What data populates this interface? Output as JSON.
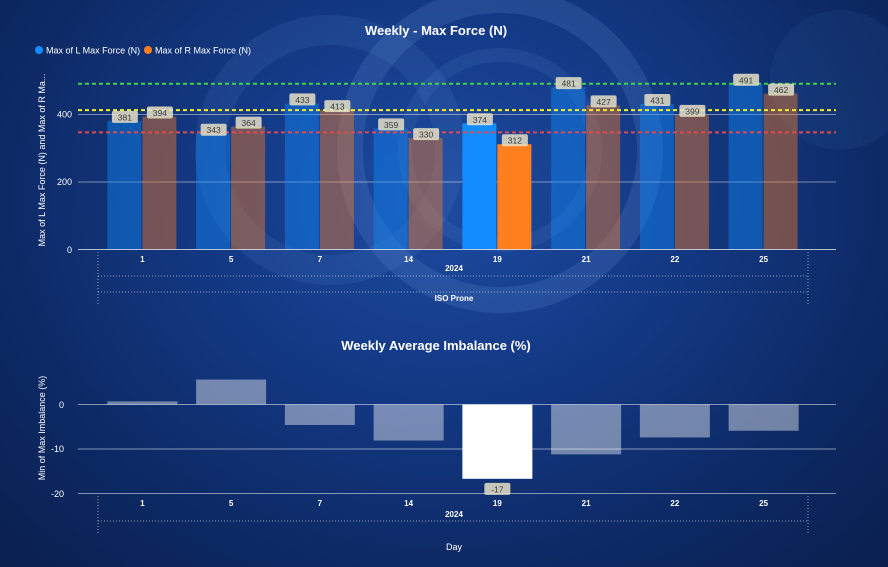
{
  "chart_data": [
    {
      "type": "bar",
      "title": "Weekly - Max Force (N)",
      "ylabel": "Max of L Max Force (N) and Max of R Ma...",
      "ylim": [
        0,
        540
      ],
      "yticks": [
        "0",
        "200",
        "400"
      ],
      "legend_position": "top-left",
      "categories": [
        "1",
        "5",
        "7",
        "14",
        "19",
        "21",
        "22",
        "25"
      ],
      "x_group_label": "2024",
      "x_outer_label": "ISO Prone",
      "highlighted_category": "19",
      "series": [
        {
          "name": "Max of L Max Force (N)",
          "color": "#118dff",
          "values": [
            381,
            343,
            433,
            359,
            374,
            481,
            431,
            491
          ]
        },
        {
          "name": "Max of R Max Force (N)",
          "color": "#ff7f1e",
          "values": [
            394,
            364,
            413,
            330,
            312,
            427,
            399,
            462
          ]
        }
      ],
      "reference_lines": [
        {
          "value": 491,
          "color": "#3fd24a"
        },
        {
          "value": 413,
          "color": "#f2ef2a"
        },
        {
          "value": 347,
          "color": "#e0494f"
        }
      ]
    },
    {
      "type": "bar",
      "title": "Weekly Average Imbalance (%)",
      "ylabel": "Min of Max Imbalance (%)",
      "ylim": [
        -20,
        6.5
      ],
      "yticks": [
        "0",
        "-10",
        "-20"
      ],
      "categories": [
        "1",
        "5",
        "7",
        "14",
        "19",
        "21",
        "22",
        "25"
      ],
      "x_group_label": "2024",
      "xlabel": "Day",
      "highlighted_category": "19",
      "series": [
        {
          "color": "#ffffff",
          "values": [
            0.7,
            5.6,
            -4.6,
            -8.1,
            -16.7,
            -11.2,
            -7.4,
            -5.9
          ]
        }
      ],
      "data_labels": [
        "",
        "",
        "",
        "",
        "-17",
        "",
        "",
        ""
      ]
    }
  ]
}
